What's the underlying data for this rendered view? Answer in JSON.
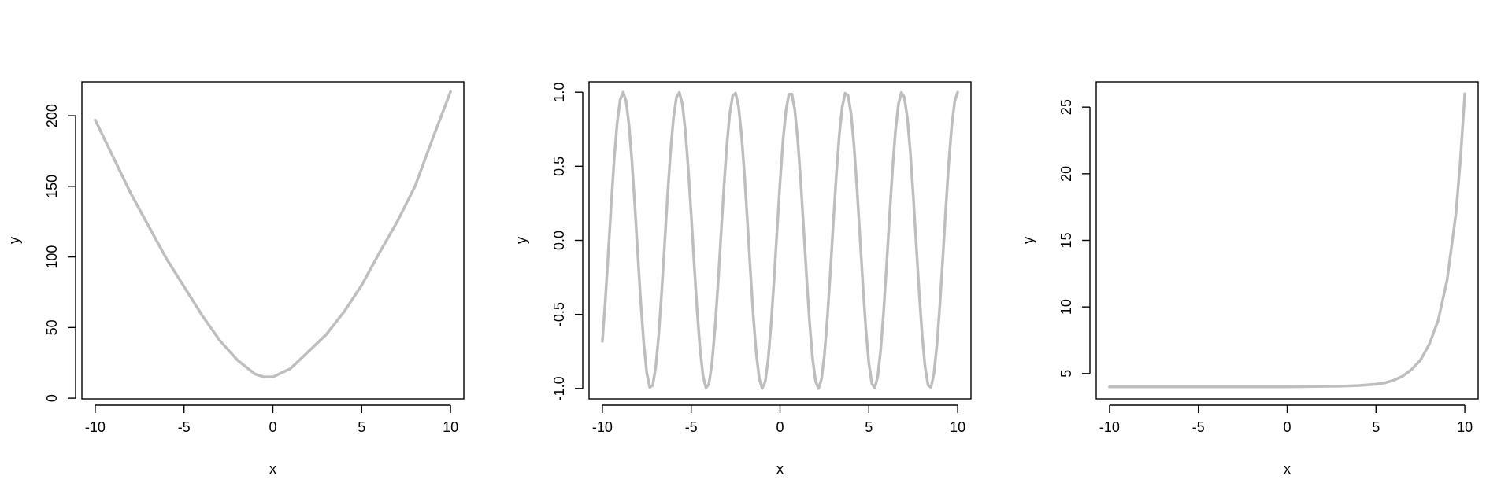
{
  "chart_data": [
    {
      "type": "line",
      "xlabel": "x",
      "ylabel": "y",
      "xlim": [
        -10.75,
        10.75
      ],
      "ylim": [
        -0.5,
        224.0
      ],
      "xticks": [
        -10,
        -5,
        0,
        5,
        10
      ],
      "xtick_labels": [
        "-10",
        "-5",
        "0",
        "5",
        "10"
      ],
      "yticks": [
        0,
        50,
        100,
        150,
        200
      ],
      "ytick_labels": [
        "0",
        "50",
        "100",
        "150",
        "200"
      ],
      "line_color": "#bebebe",
      "x": [
        -10,
        -9,
        -8,
        -7,
        -6,
        -5,
        -4,
        -3,
        -2,
        -1,
        -0.5,
        0,
        1,
        2,
        3,
        4,
        5,
        6,
        7,
        8,
        9,
        10
      ],
      "y": [
        197,
        171,
        145,
        122,
        99,
        79,
        59,
        41,
        27,
        17,
        15,
        15,
        21,
        33,
        45,
        61,
        80,
        103,
        125,
        150,
        184,
        217
      ]
    },
    {
      "type": "line",
      "xlabel": "x",
      "ylabel": "y",
      "xlim": [
        -10.75,
        10.75
      ],
      "ylim": [
        -1.07,
        1.07
      ],
      "xticks": [
        -10,
        -5,
        0,
        5,
        10
      ],
      "xtick_labels": [
        "-10",
        "-5",
        "0",
        "5",
        "10"
      ],
      "yticks": [
        -1.0,
        -0.5,
        0.0,
        0.5,
        1.0
      ],
      "ytick_labels": [
        "-1.0",
        "-0.5",
        "0.0",
        "0.5",
        "1.0"
      ],
      "line_color": "#bebebe",
      "function": "sin(2x + 0.4)",
      "x_range": [
        -10,
        10
      ],
      "n_points": 120
    },
    {
      "type": "line",
      "xlabel": "x",
      "ylabel": "y",
      "xlim": [
        -10.75,
        10.75
      ],
      "ylim": [
        3.1,
        26.9
      ],
      "xticks": [
        -10,
        -5,
        0,
        5,
        10
      ],
      "xtick_labels": [
        "-10",
        "-5",
        "0",
        "5",
        "10"
      ],
      "yticks": [
        5,
        10,
        15,
        20,
        25
      ],
      "ytick_labels": [
        "5",
        "10",
        "15",
        "20",
        "25"
      ],
      "line_color": "#bebebe",
      "x": [
        -10,
        -5,
        0,
        3,
        4,
        4.5,
        5,
        5.5,
        6,
        6.5,
        7,
        7.5,
        8,
        8.5,
        9,
        9.25,
        9.5,
        9.75,
        10
      ],
      "y": [
        4,
        4,
        4,
        4.05,
        4.1,
        4.15,
        4.2,
        4.3,
        4.5,
        4.8,
        5.3,
        6.0,
        7.2,
        9.0,
        12.0,
        14.5,
        17.0,
        21.0,
        26.0
      ]
    }
  ]
}
